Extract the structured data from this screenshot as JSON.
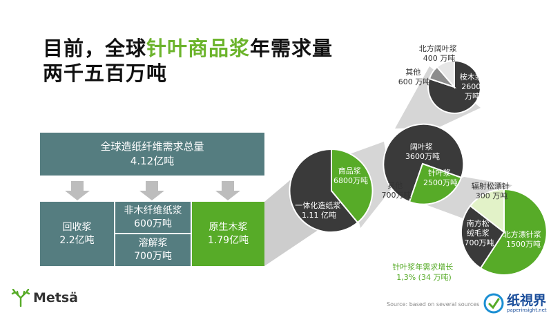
{
  "title": {
    "line1_a": "目前，全球",
    "line1_highlight": "针叶商品浆",
    "line1_b": "年需求量",
    "line2": "两千五百万吨"
  },
  "boxes": {
    "total": {
      "l1": "全球造纸纤维需求总量",
      "l2": "4.12亿吨"
    },
    "recycled": {
      "l1": "回收浆",
      "l2": "2.2亿吨"
    },
    "nonwood": {
      "l1": "非木纤维纸浆",
      "l2": "600万吨"
    },
    "dissolving": {
      "l1": "溶解浆",
      "l2": "700万吨"
    },
    "virgin": {
      "l1": "原生木浆",
      "l2": "1.79亿吨"
    }
  },
  "pies": {
    "pie1": {
      "integrated": {
        "l1": "一体化造纸浆",
        "l2": "1.11 亿吨"
      },
      "market": {
        "l1": "商品浆",
        "l2": "6800万吨"
      }
    },
    "pie2": {
      "hardwood": {
        "l1": "阔叶浆",
        "l2": "3600万吨"
      },
      "softwood": {
        "l1": "针叶浆",
        "l2": "2500万吨"
      },
      "other": {
        "l1": "其他",
        "l2": "700万吨"
      }
    },
    "pie3": {
      "northern_hardwood": {
        "l1": "北方阔叶浆",
        "l2": "400 万吨"
      },
      "other": {
        "l1": "其他",
        "l2": "600 万吨"
      },
      "eucalyptus": {
        "l1": "桉木浆",
        "l2": "2600",
        "l3": "万吨"
      }
    },
    "pie4": {
      "radiata": {
        "l1": "辐射松漂针",
        "l2": "300 万吨"
      },
      "southern": {
        "l1": "南方松",
        "l2": "绒毛浆",
        "l3": "700万吨"
      },
      "northern_softwood": {
        "l1": "北方漂针浆",
        "l2": "1500万吨"
      }
    }
  },
  "growth": {
    "l1": "针叶浆年需求增长",
    "l2": "1,3% (34 万吨)"
  },
  "logo": {
    "text": "Metsä"
  },
  "source": "Source: based on several sources",
  "watermark": {
    "cn": "纸視界",
    "url": "paperinsight.net"
  },
  "colors": {
    "green": "#57ab28",
    "teal": "#557d80",
    "dark": "#3a3a3a",
    "light_green": "#e2f2c8",
    "connector": "#cccccc"
  }
}
